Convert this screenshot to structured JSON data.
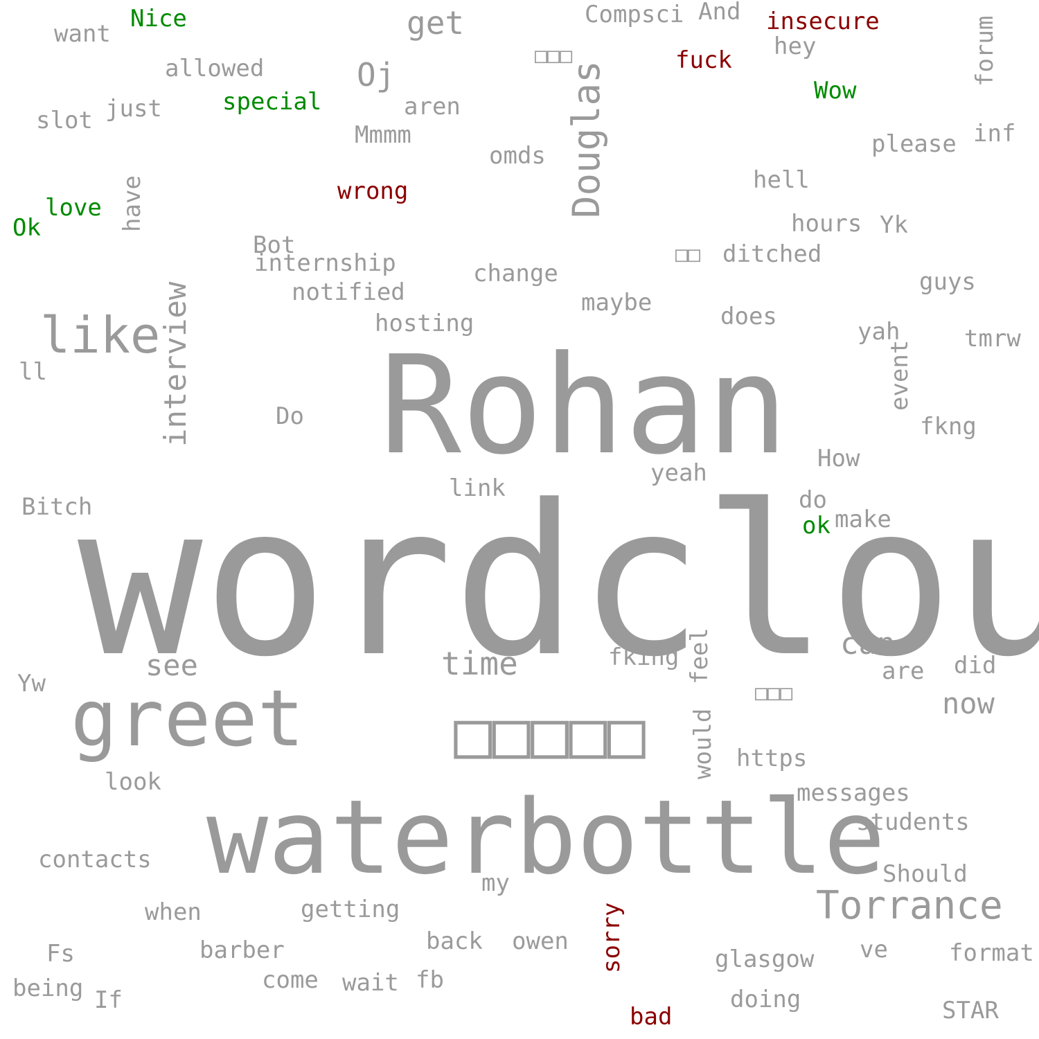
{
  "colors": {
    "background": "#ffffff",
    "neutral": "#9a9a9a",
    "positive": "#008a00",
    "negative": "#8b0000"
  },
  "words": [
    {
      "id": "wordcloud",
      "text": "wordcloud",
      "tone": "neutral"
    },
    {
      "id": "rohan",
      "text": "Rohan",
      "tone": "neutral"
    },
    {
      "id": "waterbottle",
      "text": "waterbottle",
      "tone": "neutral"
    },
    {
      "id": "greet",
      "text": "greet",
      "tone": "neutral"
    },
    {
      "id": "cjk-large",
      "text": "□□□□□",
      "tone": "neutral"
    },
    {
      "id": "like",
      "text": "like",
      "tone": "neutral"
    },
    {
      "id": "douglas",
      "text": "Douglas",
      "tone": "neutral"
    },
    {
      "id": "interview",
      "text": "interview",
      "tone": "neutral"
    },
    {
      "id": "torrance",
      "text": "Torrance",
      "tone": "neutral"
    },
    {
      "id": "time",
      "text": "time",
      "tone": "neutral"
    },
    {
      "id": "see",
      "text": "see",
      "tone": "neutral"
    },
    {
      "id": "can",
      "text": "can",
      "tone": "neutral"
    },
    {
      "id": "now",
      "text": "now",
      "tone": "neutral"
    },
    {
      "id": "get",
      "text": "get",
      "tone": "neutral"
    },
    {
      "id": "oj",
      "text": "Oj",
      "tone": "neutral"
    },
    {
      "id": "want",
      "text": "want",
      "tone": "neutral"
    },
    {
      "id": "nice",
      "text": "Nice",
      "tone": "positive"
    },
    {
      "id": "allowed",
      "text": "allowed",
      "tone": "neutral"
    },
    {
      "id": "special",
      "text": "special",
      "tone": "positive"
    },
    {
      "id": "just",
      "text": "just",
      "tone": "neutral"
    },
    {
      "id": "slot",
      "text": "slot",
      "tone": "neutral"
    },
    {
      "id": "love",
      "text": "love",
      "tone": "positive"
    },
    {
      "id": "ok-upper",
      "text": "Ok",
      "tone": "positive"
    },
    {
      "id": "have",
      "text": "have",
      "tone": "neutral"
    },
    {
      "id": "compsci",
      "text": "Compsci",
      "tone": "neutral"
    },
    {
      "id": "and",
      "text": "And",
      "tone": "neutral"
    },
    {
      "id": "insecure",
      "text": "insecure",
      "tone": "negative"
    },
    {
      "id": "hey",
      "text": "hey",
      "tone": "neutral"
    },
    {
      "id": "fuck",
      "text": "fuck",
      "tone": "negative"
    },
    {
      "id": "cjk-small-1",
      "text": "□□□",
      "tone": "neutral"
    },
    {
      "id": "wow",
      "text": "Wow",
      "tone": "positive"
    },
    {
      "id": "forum",
      "text": "forum",
      "tone": "neutral"
    },
    {
      "id": "aren",
      "text": "aren",
      "tone": "neutral"
    },
    {
      "id": "mmmm",
      "text": "Mmmm",
      "tone": "neutral"
    },
    {
      "id": "omds",
      "text": "omds",
      "tone": "neutral"
    },
    {
      "id": "please",
      "text": "please",
      "tone": "neutral"
    },
    {
      "id": "inf",
      "text": "inf",
      "tone": "neutral"
    },
    {
      "id": "wrong",
      "text": "wrong",
      "tone": "negative"
    },
    {
      "id": "hell",
      "text": "hell",
      "tone": "neutral"
    },
    {
      "id": "hours",
      "text": "hours",
      "tone": "neutral"
    },
    {
      "id": "yk",
      "text": "Yk",
      "tone": "neutral"
    },
    {
      "id": "bot",
      "text": "Bot",
      "tone": "neutral"
    },
    {
      "id": "internship",
      "text": "internship",
      "tone": "neutral"
    },
    {
      "id": "cjk-small-2",
      "text": "□□",
      "tone": "neutral"
    },
    {
      "id": "ditched",
      "text": "ditched",
      "tone": "neutral"
    },
    {
      "id": "change",
      "text": "change",
      "tone": "neutral"
    },
    {
      "id": "guys",
      "text": "guys",
      "tone": "neutral"
    },
    {
      "id": "notified",
      "text": "notified",
      "tone": "neutral"
    },
    {
      "id": "maybe",
      "text": "maybe",
      "tone": "neutral"
    },
    {
      "id": "does",
      "text": "does",
      "tone": "neutral"
    },
    {
      "id": "hosting",
      "text": "hosting",
      "tone": "neutral"
    },
    {
      "id": "yah",
      "text": "yah",
      "tone": "neutral"
    },
    {
      "id": "tmrw",
      "text": "tmrw",
      "tone": "neutral"
    },
    {
      "id": "event",
      "text": "event",
      "tone": "neutral"
    },
    {
      "id": "ll",
      "text": "ll",
      "tone": "neutral"
    },
    {
      "id": "do-upper",
      "text": "Do",
      "tone": "neutral"
    },
    {
      "id": "fkng",
      "text": "fkng",
      "tone": "neutral"
    },
    {
      "id": "how",
      "text": "How",
      "tone": "neutral"
    },
    {
      "id": "yeah",
      "text": "yeah",
      "tone": "neutral"
    },
    {
      "id": "link",
      "text": "link",
      "tone": "neutral"
    },
    {
      "id": "bitch",
      "text": "Bitch",
      "tone": "neutral"
    },
    {
      "id": "do-lower",
      "text": "do",
      "tone": "neutral"
    },
    {
      "id": "ok-lower",
      "text": "ok",
      "tone": "positive"
    },
    {
      "id": "make",
      "text": "make",
      "tone": "neutral"
    },
    {
      "id": "fking",
      "text": "fking",
      "tone": "neutral"
    },
    {
      "id": "feel",
      "text": "feel",
      "tone": "neutral"
    },
    {
      "id": "are",
      "text": "are",
      "tone": "neutral"
    },
    {
      "id": "did",
      "text": "did",
      "tone": "neutral"
    },
    {
      "id": "yw",
      "text": "Yw",
      "tone": "neutral"
    },
    {
      "id": "cjk-small-3",
      "text": "□□□",
      "tone": "neutral"
    },
    {
      "id": "would",
      "text": "would",
      "tone": "neutral"
    },
    {
      "id": "https",
      "text": "https",
      "tone": "neutral"
    },
    {
      "id": "look",
      "text": "look",
      "tone": "neutral"
    },
    {
      "id": "messages",
      "text": "messages",
      "tone": "neutral"
    },
    {
      "id": "students",
      "text": "students",
      "tone": "neutral"
    },
    {
      "id": "contacts",
      "text": "contacts",
      "tone": "neutral"
    },
    {
      "id": "should",
      "text": "Should",
      "tone": "neutral"
    },
    {
      "id": "my",
      "text": "my",
      "tone": "neutral"
    },
    {
      "id": "when",
      "text": "when",
      "tone": "neutral"
    },
    {
      "id": "getting",
      "text": "getting",
      "tone": "neutral"
    },
    {
      "id": "sorry",
      "text": "sorry",
      "tone": "negative"
    },
    {
      "id": "fs",
      "text": "Fs",
      "tone": "neutral"
    },
    {
      "id": "barber",
      "text": "barber",
      "tone": "neutral"
    },
    {
      "id": "back",
      "text": "back",
      "tone": "neutral"
    },
    {
      "id": "owen",
      "text": "owen",
      "tone": "neutral"
    },
    {
      "id": "ve",
      "text": "ve",
      "tone": "neutral"
    },
    {
      "id": "format",
      "text": "format",
      "tone": "neutral"
    },
    {
      "id": "glasgow",
      "text": "glasgow",
      "tone": "neutral"
    },
    {
      "id": "being",
      "text": "being",
      "tone": "neutral"
    },
    {
      "id": "if",
      "text": "If",
      "tone": "neutral"
    },
    {
      "id": "come",
      "text": "come",
      "tone": "neutral"
    },
    {
      "id": "wait",
      "text": "wait",
      "tone": "neutral"
    },
    {
      "id": "fb",
      "text": "fb",
      "tone": "neutral"
    },
    {
      "id": "doing",
      "text": "doing",
      "tone": "neutral"
    },
    {
      "id": "star",
      "text": "STAR",
      "tone": "neutral"
    },
    {
      "id": "bad",
      "text": "bad",
      "tone": "negative"
    }
  ]
}
